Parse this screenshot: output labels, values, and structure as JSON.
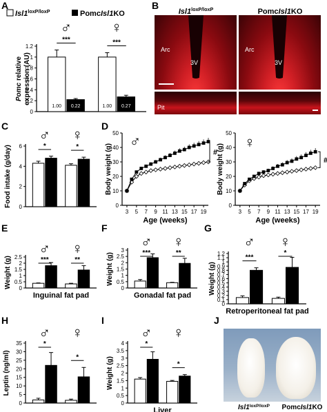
{
  "panel_letters": [
    "A",
    "B",
    "C",
    "D",
    "E",
    "F",
    "G",
    "H",
    "I",
    "J"
  ],
  "sex_symbols": {
    "male": "♂",
    "female": "♀"
  },
  "legend": {
    "ctrl": {
      "base": "Isl1",
      "sup": "loxP/loxP"
    },
    "ko": {
      "pre": "Pomc",
      "it": "Isl1",
      "post": "KO"
    }
  },
  "panel_b": {
    "col_ctrl": {
      "base": "Isl1",
      "sup": "loxP/loxP"
    },
    "col_ko": {
      "pre": "Pomc",
      "it": "Isl1",
      "post": "KO"
    },
    "arc": "Arc",
    "third_ventricle": "3V",
    "pit": "Pit"
  },
  "panel_d": {
    "hash": "#"
  },
  "panel_j": {
    "ctrl": {
      "base": "Isl1",
      "sup": "loxP/loxP"
    },
    "ko": {
      "pre": "Pomc",
      "it": "Isl1",
      "post": "KO"
    }
  },
  "colors": {
    "ctrl_fill": "#ffffff",
    "ko_fill": "#000000",
    "micrograph_red": "#c8141c",
    "micrograph_dark": "#2a0204",
    "photo_bg": "#8fa6c0"
  },
  "chart_data": [
    {
      "panel": "A",
      "type": "bar",
      "ylabel_it": "Pomc",
      "ylabel_rest": " relative",
      "ylabel2": "expression (AU)",
      "ylim": [
        0,
        1.2
      ],
      "yticks": [
        "0",
        "0.2",
        "0.4",
        "0.6",
        "0.8",
        "1",
        "1.2"
      ],
      "groups": [
        {
          "sex": "male",
          "values": [
            1.0,
            0.22
          ],
          "errors": [
            0.13,
            0.02
          ],
          "labels": [
            "1.00",
            "0.22"
          ],
          "sig": "***"
        },
        {
          "sex": "female",
          "values": [
            1.0,
            0.27
          ],
          "errors": [
            0.08,
            0.03
          ],
          "labels": [
            "1.00",
            "0.27"
          ],
          "sig": "***"
        }
      ]
    },
    {
      "panel": "C",
      "type": "bar",
      "ylabel": "Food intake (g/day)",
      "ylim": [
        0,
        6
      ],
      "yticks": [
        "0",
        "2",
        "4",
        "6"
      ],
      "groups": [
        {
          "sex": "male",
          "values": [
            4.3,
            4.8
          ],
          "errors": [
            0.2,
            0.2
          ],
          "sig": "*"
        },
        {
          "sex": "female",
          "values": [
            4.1,
            4.7
          ],
          "errors": [
            0.15,
            0.2
          ],
          "sig": "*"
        }
      ]
    },
    {
      "panel": "D-male",
      "type": "line",
      "ylabel": "Body weight (g)",
      "xlabel": "Age (weeks)",
      "ylim": [
        0,
        50
      ],
      "yticks": [
        "0",
        "10",
        "20",
        "30",
        "40",
        "50"
      ],
      "xticks": [
        "3",
        "5",
        "7",
        "9",
        "11",
        "13",
        "15",
        "17",
        "19"
      ],
      "x": [
        3,
        4,
        5,
        6,
        7,
        8,
        9,
        10,
        11,
        12,
        13,
        14,
        15,
        16,
        17,
        18,
        19,
        20
      ],
      "series": [
        {
          "values": [
            10,
            16,
            20,
            22,
            23,
            24,
            24.5,
            25,
            25.5,
            26,
            26.5,
            27,
            27.5,
            28,
            28.5,
            29,
            29.5,
            30
          ]
        },
        {
          "values": [
            10,
            18,
            23,
            25.5,
            27,
            28.5,
            30,
            31.5,
            33,
            34.5,
            36,
            37.5,
            38.5,
            40,
            41,
            42,
            43,
            44
          ]
        }
      ]
    },
    {
      "panel": "D-female",
      "type": "line",
      "ylabel": "Body weight (g)",
      "xlabel": "Age (weeks)",
      "ylim": [
        0,
        50
      ],
      "yticks": [
        "0",
        "10",
        "20",
        "30",
        "40",
        "50"
      ],
      "xticks": [
        "3",
        "5",
        "7",
        "9",
        "11",
        "13",
        "15",
        "17",
        "19"
      ],
      "x": [
        3,
        4,
        5,
        6,
        7,
        8,
        9,
        10,
        11,
        12,
        13,
        14,
        15,
        16,
        17,
        18,
        19
      ],
      "series": [
        {
          "values": [
            10,
            14,
            17,
            18.5,
            19.5,
            20.5,
            21,
            21.5,
            22,
            22.5,
            23,
            23.5,
            24,
            24.5,
            25,
            25.5,
            26
          ]
        },
        {
          "values": [
            10,
            15,
            18,
            20,
            22,
            23,
            24,
            25.5,
            27,
            28,
            29.5,
            30.5,
            32,
            33,
            34.5,
            36,
            37
          ]
        }
      ]
    },
    {
      "panel": "E",
      "type": "bar",
      "ylabel": "Weight (g)",
      "xlabel": "Inguinal fat pad",
      "ylim": [
        0,
        2.5
      ],
      "yticks": [
        "0",
        "0.5",
        "1",
        "1.5",
        "2",
        "2.5"
      ],
      "groups": [
        {
          "sex": "male",
          "values": [
            0.38,
            1.8
          ],
          "errors": [
            0.03,
            0.25
          ],
          "sig": "***"
        },
        {
          "sex": "female",
          "values": [
            0.33,
            1.45
          ],
          "errors": [
            0.05,
            0.35
          ],
          "sig": "**"
        }
      ]
    },
    {
      "panel": "F",
      "type": "bar",
      "ylabel": "Weight (g)",
      "xlabel": "Gonadal fat pad",
      "ylim": [
        0,
        3
      ],
      "yticks": [
        "0",
        "0.5",
        "1",
        "1.5",
        "2",
        "2.5",
        "3"
      ],
      "groups": [
        {
          "sex": "male",
          "values": [
            0.55,
            2.4
          ],
          "errors": [
            0.12,
            0.3
          ],
          "sig": "***"
        },
        {
          "sex": "female",
          "values": [
            0.42,
            1.95
          ],
          "errors": [
            0.03,
            0.4
          ],
          "sig": "**"
        }
      ]
    },
    {
      "panel": "G",
      "type": "bar",
      "ylabel": "Weight (g)",
      "xlabel": "Retroperitoneal fat pad",
      "ylim": [
        0,
        1.2
      ],
      "yticks": [
        "0",
        "0.1",
        "0.2",
        "0.3",
        "0.4",
        "0.5",
        "0.6",
        "0.7",
        "0.8",
        "0.9",
        "1",
        "1.1",
        "1.2"
      ],
      "groups": [
        {
          "sex": "male",
          "values": [
            0.15,
            0.8
          ],
          "errors": [
            0.04,
            0.06
          ],
          "sig": "***"
        },
        {
          "sex": "female",
          "values": [
            0.13,
            0.87
          ],
          "errors": [
            0.03,
            0.24
          ],
          "sig": "*"
        }
      ]
    },
    {
      "panel": "H",
      "type": "bar",
      "ylabel": "Leptin (ng/ml)",
      "ylim": [
        0,
        35
      ],
      "yticks": [
        "0",
        "5",
        "10",
        "15",
        "20",
        "25",
        "30",
        "35"
      ],
      "groups": [
        {
          "sex": "male",
          "values": [
            1.8,
            22
          ],
          "errors": [
            1.0,
            7.5
          ],
          "sig": "*"
        },
        {
          "sex": "female",
          "values": [
            1.6,
            15.3
          ],
          "errors": [
            0.7,
            5.5
          ],
          "sig": "*"
        }
      ]
    },
    {
      "panel": "I",
      "type": "bar",
      "ylabel": "Weight (g)",
      "xlabel": "Liver",
      "ylim": [
        0,
        4
      ],
      "yticks": [
        "0",
        "0.5",
        "1",
        "1.5",
        "2",
        "2.5",
        "3",
        "3.5",
        "4"
      ],
      "groups": [
        {
          "sex": "male",
          "values": [
            1.6,
            2.92
          ],
          "errors": [
            0.1,
            0.5
          ],
          "sig": "*"
        },
        {
          "sex": "female",
          "values": [
            1.45,
            1.8
          ],
          "errors": [
            0.06,
            0.1
          ],
          "sig": "*"
        }
      ]
    }
  ]
}
